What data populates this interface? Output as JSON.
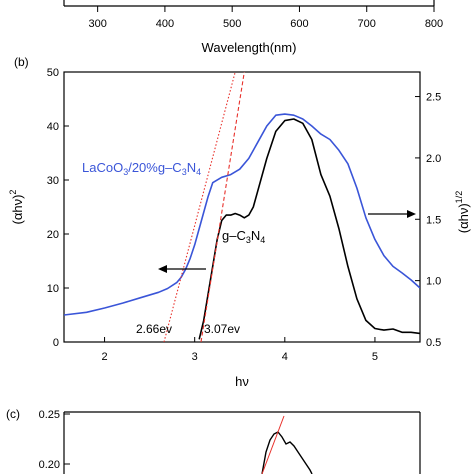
{
  "colors": {
    "blue": "#3a55d8",
    "black": "#000000",
    "red": "#e8302a"
  },
  "panel_a": {
    "xlabel": "Wavelength(nm)",
    "xticks": [
      "300",
      "400",
      "500",
      "600",
      "700",
      "800"
    ]
  },
  "panel_b": {
    "label": "(b)",
    "ylabel_left": "(αhν)",
    "ylabel_left_exp": "2",
    "ylabel_right": "(αhν)",
    "ylabel_right_exp": "1/2",
    "xlabel": "hν",
    "annotation_lacoo3": "LaCoO",
    "annotation_lacoo3_sub": "3",
    "annotation_lacoo3_rest": "/20%g–C",
    "annotation_lacoo3_sub2": "3",
    "annotation_lacoo3_n": "N",
    "annotation_lacoo3_sub3": "4",
    "annotation_gc3n4": "g–C",
    "annotation_gc3n4_sub": "3",
    "annotation_gc3n4_n": "N",
    "annotation_gc3n4_sub2": "4",
    "edge_label_1": "2.66ev",
    "edge_label_2": "3.07ev"
  },
  "panel_c": {
    "label": "(c)",
    "yticks": [
      "0.25",
      "0.20"
    ]
  },
  "chart_data": [
    {
      "type": "line",
      "xlabel": "Wavelength(nm)",
      "xlim": [
        250,
        800
      ],
      "xticks": [
        300,
        400,
        500,
        600,
        700,
        800
      ]
    },
    {
      "type": "line",
      "xlabel": "hν",
      "ylabel": "(αhν)^2",
      "y2label": "(αhν)^1/2",
      "xlim": [
        1.55,
        5.5
      ],
      "ylim": [
        0,
        50
      ],
      "y2lim": [
        0.5,
        2.7
      ],
      "xticks": [
        2,
        3,
        4,
        5
      ],
      "yticks": [
        0,
        10,
        20,
        30,
        40,
        50
      ],
      "y2ticks": [
        0.5,
        1.0,
        1.5,
        2.0,
        2.5
      ],
      "series": [
        {
          "name": "LaCoO3/20%g-C3N4",
          "axis": "left",
          "x": [
            1.55,
            1.8,
            2.0,
            2.2,
            2.4,
            2.6,
            2.7,
            2.8,
            2.85,
            2.9,
            2.95,
            3.0,
            3.05,
            3.1,
            3.15,
            3.2,
            3.3,
            3.4,
            3.5,
            3.6,
            3.7,
            3.8,
            3.9,
            4.0,
            4.1,
            4.2,
            4.3,
            4.4,
            4.5,
            4.6,
            4.7,
            4.8,
            4.9,
            5.0,
            5.1,
            5.2,
            5.3,
            5.4,
            5.5
          ],
          "y": [
            5,
            5.5,
            6.3,
            7.2,
            8.2,
            9.2,
            9.9,
            11,
            12,
            13.5,
            15.5,
            18,
            21,
            24,
            27,
            29.5,
            30.5,
            31,
            32,
            34,
            37,
            40,
            42,
            42.2,
            42,
            41.3,
            40,
            38.5,
            37.5,
            35.5,
            33,
            28.5,
            23,
            19,
            16,
            14,
            12.8,
            11.5,
            10
          ]
        },
        {
          "name": "g-C3N4",
          "axis": "left",
          "x": [
            3.05,
            3.1,
            3.15,
            3.2,
            3.25,
            3.3,
            3.35,
            3.4,
            3.45,
            3.5,
            3.55,
            3.6,
            3.65,
            3.7,
            3.8,
            3.9,
            4.0,
            4.1,
            4.2,
            4.3,
            4.4,
            4.5,
            4.6,
            4.7,
            4.8,
            4.9,
            5.0,
            5.1,
            5.2,
            5.3,
            5.4,
            5.5
          ],
          "y": [
            0.5,
            4,
            9,
            14,
            19,
            22.5,
            23.5,
            23.5,
            23.8,
            23.5,
            23,
            23.5,
            25,
            28,
            34,
            39,
            41,
            41.3,
            40.5,
            37.5,
            31,
            27,
            21,
            14,
            8,
            4,
            2.5,
            2.2,
            2.4,
            1.8,
            1.8,
            1.6
          ]
        },
        {
          "name": "tangent-2.66ev",
          "style": "dotted",
          "axis": "left",
          "x": [
            2.66,
            3.45
          ],
          "y": [
            0,
            50
          ]
        },
        {
          "name": "tangent-3.07ev",
          "style": "dashed",
          "axis": "left",
          "x": [
            3.07,
            3.55
          ],
          "y": [
            0,
            50
          ]
        }
      ],
      "annotations": [
        "LaCoO3/20%g-C3N4",
        "g-C3N4",
        "2.66ev",
        "3.07ev"
      ]
    },
    {
      "type": "line",
      "yticks": [
        0.25,
        0.2
      ]
    }
  ]
}
